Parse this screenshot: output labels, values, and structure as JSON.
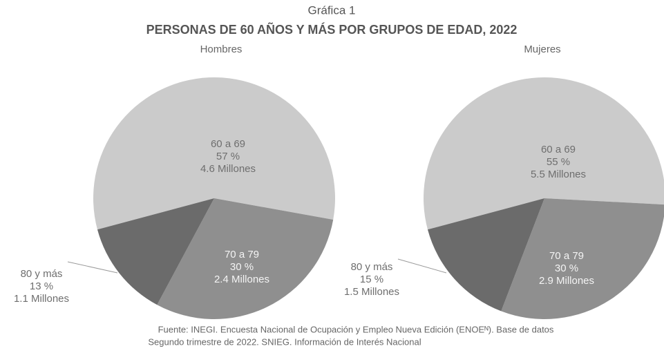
{
  "header": {
    "label": "Gráfica 1",
    "title": "PERSONAS DE 60 AÑOS Y MÁS POR GRUPOS DE EDAD, 2022"
  },
  "chart_data": [
    {
      "type": "pie",
      "title": "Hombres",
      "categories": [
        "60 a 69",
        "70 a 79",
        "80 y más"
      ],
      "values": [
        57,
        30,
        13
      ],
      "value_labels": [
        "57 %",
        "30 %",
        "13 %"
      ],
      "millions": [
        4.6,
        2.4,
        1.1
      ],
      "millions_labels": [
        "4.6 Millones",
        "2.4 Millones",
        "1.1 Millones"
      ],
      "colors": [
        "#cbcbcb",
        "#8f8f8f",
        "#6b6b6b"
      ]
    },
    {
      "type": "pie",
      "title": "Mujeres",
      "categories": [
        "60 a 69",
        "70 a 79",
        "80 y más"
      ],
      "values": [
        55,
        30,
        15
      ],
      "value_labels": [
        "55 %",
        "30 %",
        "15 %"
      ],
      "millions": [
        5.5,
        2.9,
        1.5
      ],
      "millions_labels": [
        "5.5 Millones",
        "2.9 Millones",
        "1.5 Millones"
      ],
      "colors": [
        "#cbcbcb",
        "#8f8f8f",
        "#6b6b6b"
      ]
    }
  ],
  "source": [
    "Fuente: INEGI. Encuesta Nacional de Ocupación y Empleo Nueva Edición (ENOEᴺ). Base de datos",
    "Segundo trimestre de 2022. SNIEG. Información de Interés Nacional"
  ]
}
